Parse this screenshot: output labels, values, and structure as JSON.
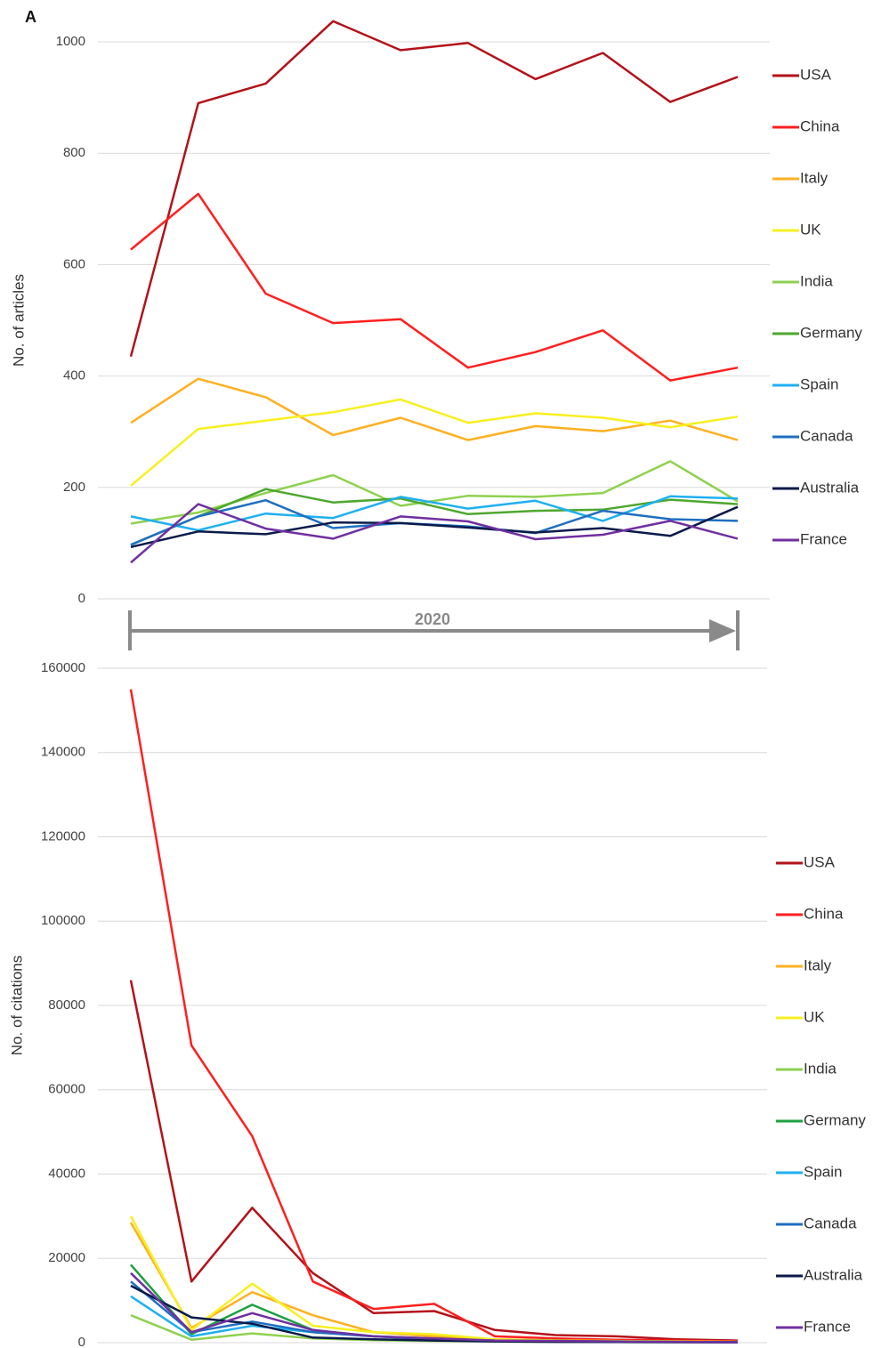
{
  "chart_data": [
    {
      "type": "line",
      "panel_label": "A",
      "annotation": "2020",
      "y_label": "No. of articles",
      "categories": [
        null,
        null,
        null,
        null,
        null,
        null,
        null,
        null,
        null,
        null
      ],
      "ylim": [
        0,
        1000
      ],
      "yticks": [
        0,
        200,
        400,
        600,
        800,
        1000
      ],
      "grid": true,
      "legend": "right",
      "series": [
        {
          "name": "USA",
          "color": "#b3121a",
          "values": [
            435,
            890,
            925,
            1037,
            985,
            998,
            933,
            980,
            892,
            937
          ]
        },
        {
          "name": "China",
          "color": "#ff1f1f",
          "values": [
            627,
            727,
            548,
            495,
            502,
            415,
            443,
            482,
            392,
            415
          ]
        },
        {
          "name": "Italy",
          "color": "#ffb020",
          "values": [
            316,
            395,
            362,
            294,
            325,
            285,
            310,
            301,
            320,
            285
          ]
        },
        {
          "name": "UK",
          "color": "#f7f020",
          "values": [
            203,
            305,
            320,
            335,
            358,
            316,
            333,
            325,
            308,
            327
          ]
        },
        {
          "name": "India",
          "color": "#8fd14f",
          "values": [
            135,
            155,
            190,
            222,
            167,
            185,
            183,
            190,
            247,
            175
          ]
        },
        {
          "name": "Germany",
          "color": "#4ea72e",
          "values": [
            97,
            148,
            197,
            173,
            180,
            152,
            158,
            160,
            178,
            170
          ]
        },
        {
          "name": "Spain",
          "color": "#1fb0f0",
          "values": [
            148,
            123,
            153,
            145,
            183,
            162,
            176,
            140,
            184,
            180
          ]
        },
        {
          "name": "Canada",
          "color": "#1f6fc0",
          "values": [
            97,
            148,
            177,
            127,
            136,
            130,
            118,
            158,
            143,
            140
          ]
        },
        {
          "name": "Australia",
          "color": "#0a1a4a",
          "values": [
            93,
            121,
            116,
            137,
            136,
            128,
            119,
            127,
            113,
            165
          ]
        },
        {
          "name": "France",
          "color": "#7030a0",
          "values": [
            65,
            170,
            126,
            108,
            148,
            139,
            107,
            115,
            140,
            108
          ]
        }
      ]
    },
    {
      "type": "line",
      "y_label": "No. of citations",
      "categories": [
        null,
        null,
        null,
        null,
        null,
        null,
        null,
        null,
        null,
        null,
        null
      ],
      "ylim": [
        0,
        160000
      ],
      "yticks": [
        0,
        20000,
        40000,
        60000,
        80000,
        100000,
        120000,
        140000,
        160000
      ],
      "grid": true,
      "legend": "right",
      "series": [
        {
          "name": "USA",
          "color": "#b3121a",
          "values": [
            86000,
            14500,
            32000,
            16500,
            7000,
            7500,
            3000,
            1800,
            1500,
            800,
            500
          ]
        },
        {
          "name": "China",
          "color": "#ff1f1f",
          "values": [
            155000,
            70500,
            49000,
            14500,
            8000,
            9200,
            1500,
            1000,
            700,
            500,
            300
          ]
        },
        {
          "name": "Italy",
          "color": "#ffb020",
          "values": [
            28500,
            3500,
            12000,
            6500,
            2500,
            1500,
            800,
            500,
            400,
            300,
            200
          ]
        },
        {
          "name": "UK",
          "color": "#f7f020",
          "values": [
            30000,
            3000,
            14000,
            4000,
            2500,
            2000,
            800,
            500,
            400,
            300,
            200
          ]
        },
        {
          "name": "India",
          "color": "#8fd14f",
          "values": [
            6500,
            700,
            2200,
            1000,
            600,
            400,
            300,
            200,
            150,
            100,
            80
          ]
        },
        {
          "name": "Germany",
          "color": "#1fa040",
          "values": [
            18500,
            2000,
            9000,
            3000,
            1500,
            1000,
            500,
            400,
            300,
            200,
            100
          ]
        },
        {
          "name": "Spain",
          "color": "#1fb0f0",
          "values": [
            11000,
            1500,
            4000,
            2500,
            1500,
            800,
            400,
            300,
            200,
            150,
            100
          ]
        },
        {
          "name": "Canada",
          "color": "#1f6fc0",
          "values": [
            14500,
            2500,
            5000,
            2500,
            1500,
            800,
            400,
            300,
            200,
            150,
            100
          ]
        },
        {
          "name": "Australia",
          "color": "#0a1a4a",
          "values": [
            13500,
            6000,
            4500,
            1200,
            800,
            500,
            300,
            200,
            150,
            100,
            80
          ]
        },
        {
          "name": "France",
          "color": "#7030a0",
          "values": [
            16500,
            2500,
            7000,
            3000,
            1500,
            1000,
            500,
            400,
            300,
            200,
            100
          ]
        }
      ]
    }
  ]
}
